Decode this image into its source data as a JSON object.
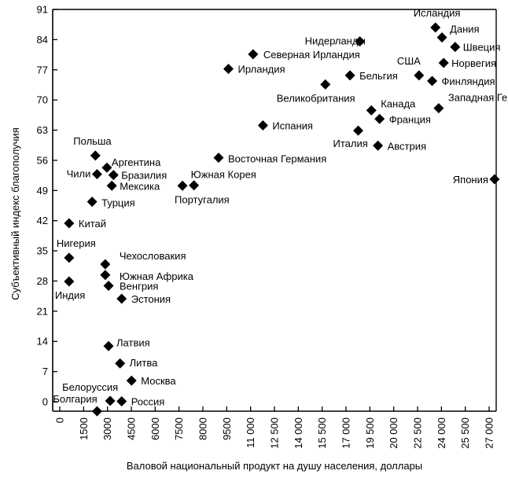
{
  "chart_data": {
    "type": "scatter",
    "title": "",
    "xlabel": "Валовой национальный продукт на душу населения, доллары",
    "ylabel": "Субъективный индекс благополучия",
    "xlim": [
      0,
      27000
    ],
    "ylim": [
      -2,
      91
    ],
    "xticks": [
      "0",
      "1500",
      "3000",
      "4500",
      "6000",
      "7500",
      "8000",
      "9500",
      "11 000",
      "12 500",
      "14 000",
      "15 500",
      "17 000",
      "19 500",
      "20 000",
      "22 500",
      "24 000",
      "25 500",
      "27 000"
    ],
    "yticks": [
      0,
      7,
      14,
      21,
      28,
      35,
      42,
      49,
      56,
      63,
      70,
      77,
      84,
      91
    ],
    "grid": false,
    "points": [
      {
        "label": "Исландия",
        "x": 23300,
        "y": 86.8
      },
      {
        "label": "Дания",
        "x": 23700,
        "y": 84.5
      },
      {
        "label": "Швеция",
        "x": 24500,
        "y": 82.3
      },
      {
        "label": "Нидерланды",
        "x": 18700,
        "y": 83.6
      },
      {
        "label": "Норвегия",
        "x": 23800,
        "y": 78.6
      },
      {
        "label": "США",
        "x": 22300,
        "y": 75.7
      },
      {
        "label": "Финляндия",
        "x": 23100,
        "y": 74.4
      },
      {
        "label": "Северная Ирландия",
        "x": 12200,
        "y": 80.6
      },
      {
        "label": "Ирландия",
        "x": 10700,
        "y": 77.2
      },
      {
        "label": "Бельгия",
        "x": 18100,
        "y": 75.7
      },
      {
        "label": "Великобритания",
        "x": 16600,
        "y": 73.6
      },
      {
        "label": "Канада",
        "x": 19400,
        "y": 67.6
      },
      {
        "label": "Франция",
        "x": 19900,
        "y": 65.6
      },
      {
        "label": "Западная Германия",
        "x": 23500,
        "y": 68.1
      },
      {
        "label": "Испания",
        "x": 12800,
        "y": 64.1
      },
      {
        "label": "Италия",
        "x": 18600,
        "y": 62.9
      },
      {
        "label": "Австрия",
        "x": 19800,
        "y": 59.4
      },
      {
        "label": "Восточная Германия",
        "x": 10100,
        "y": 56.6
      },
      {
        "label": "Япония",
        "x": 26900,
        "y": 51.6
      },
      {
        "label": "Южная Корея",
        "x": 8600,
        "y": 50.2
      },
      {
        "label": "Португалия",
        "x": 7900,
        "y": 50.1
      },
      {
        "label": "Польша",
        "x": 2600,
        "y": 57.1
      },
      {
        "label": "Аргентина",
        "x": 3300,
        "y": 54.3
      },
      {
        "label": "Чили",
        "x": 2700,
        "y": 52.8
      },
      {
        "label": "Бразилия",
        "x": 3700,
        "y": 52.6
      },
      {
        "label": "Мексика",
        "x": 3600,
        "y": 50.1
      },
      {
        "label": "Турция",
        "x": 2400,
        "y": 46.4
      },
      {
        "label": "Китай",
        "x": 1000,
        "y": 41.4
      },
      {
        "label": "Нигерия",
        "x": 1000,
        "y": 33.4
      },
      {
        "label": "Чехословакия",
        "x": 3200,
        "y": 31.9
      },
      {
        "label": "Южная Африка",
        "x": 3200,
        "y": 29.4
      },
      {
        "label": "Венгрия",
        "x": 3400,
        "y": 26.9
      },
      {
        "label": "Индия",
        "x": 1000,
        "y": 27.9
      },
      {
        "label": "Эстония",
        "x": 4200,
        "y": 23.9
      },
      {
        "label": "Латвия",
        "x": 3400,
        "y": 12.9
      },
      {
        "label": "Литва",
        "x": 4100,
        "y": 8.9
      },
      {
        "label": "Москва",
        "x": 4800,
        "y": 4.9
      },
      {
        "label": "Белоруссия",
        "x": 3500,
        "y": 0.2
      },
      {
        "label": "Россия",
        "x": 4200,
        "y": 0.1
      },
      {
        "label": "Болгария",
        "x": 2700,
        "y": -2.2
      }
    ]
  }
}
